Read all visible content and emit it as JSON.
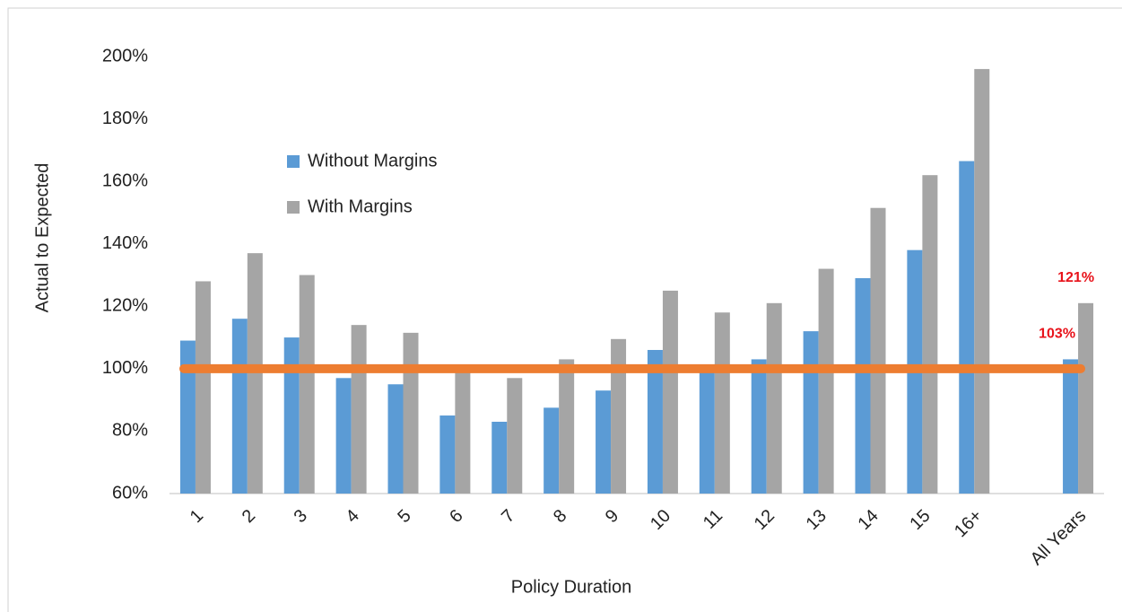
{
  "chart_data": {
    "type": "bar",
    "y_label": "Actual to Expected",
    "x_label": "Policy Duration",
    "categories": [
      "1",
      "2",
      "3",
      "4",
      "5",
      "6",
      "7",
      "8",
      "9",
      "10",
      "11",
      "12",
      "13",
      "14",
      "15",
      "16+",
      null,
      "All Years"
    ],
    "series": [
      {
        "name": "Without Margins",
        "color": "#5b9bd5",
        "values": [
          109,
          116,
          110,
          97,
          95,
          85,
          83,
          87.5,
          93,
          106,
          99,
          103,
          112,
          129,
          138,
          166.5,
          null,
          103
        ],
        "value_labels": [
          null,
          null,
          null,
          null,
          null,
          null,
          null,
          null,
          null,
          null,
          null,
          null,
          null,
          null,
          null,
          null,
          null,
          "103%"
        ]
      },
      {
        "name": "With Margins",
        "color": "#a5a5a5",
        "values": [
          128,
          137,
          130,
          114,
          111.5,
          100,
          97,
          103,
          109.5,
          125,
          118,
          121,
          132,
          151.5,
          162,
          196,
          null,
          121
        ],
        "value_labels": [
          null,
          null,
          null,
          null,
          null,
          null,
          null,
          null,
          null,
          null,
          null,
          null,
          null,
          null,
          null,
          null,
          null,
          "121%"
        ]
      }
    ],
    "value_label_color": "#e8131b",
    "reference_line": {
      "value": 100,
      "color": "#ed7d31"
    },
    "ylim": [
      60,
      200
    ],
    "yticks": [
      {
        "value": 60,
        "label": "60%"
      },
      {
        "value": 80,
        "label": "80%"
      },
      {
        "value": 100,
        "label": "100%"
      },
      {
        "value": 120,
        "label": "120%"
      },
      {
        "value": 140,
        "label": "140%"
      },
      {
        "value": 160,
        "label": "160%"
      },
      {
        "value": 180,
        "label": "180%"
      },
      {
        "value": 200,
        "label": "200%"
      }
    ],
    "grid": false,
    "legend": "upper left"
  }
}
